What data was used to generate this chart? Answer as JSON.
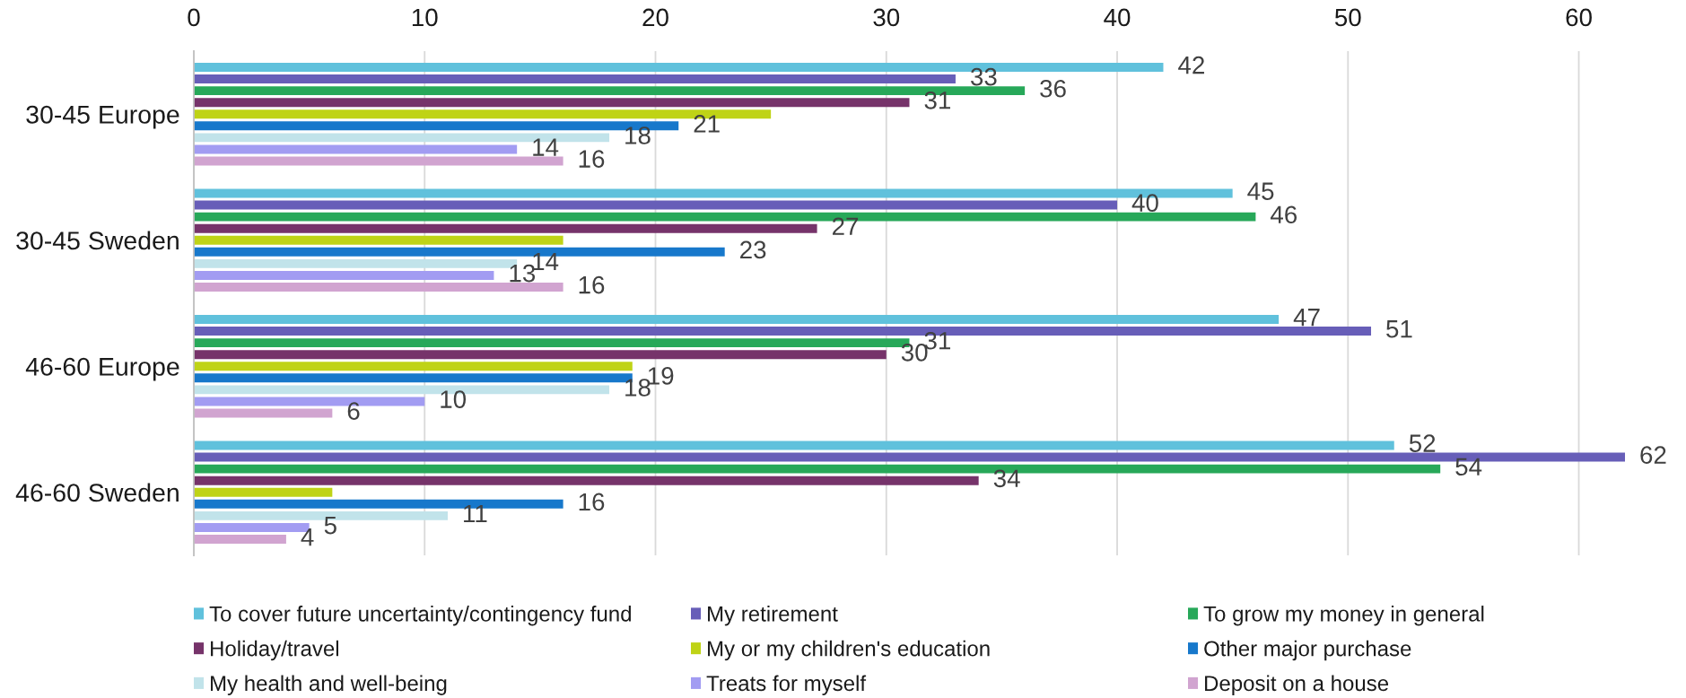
{
  "chart_data": {
    "type": "bar",
    "orientation": "horizontal",
    "categories": [
      "30-45 Europe",
      "30-45 Sweden",
      "46-60 Europe",
      "46-60 Sweden"
    ],
    "series": [
      {
        "name": "To cover future uncertainty/contingency fund",
        "color": "#60c1dc",
        "values": [
          42,
          45,
          47,
          52
        ],
        "value_labels": [
          "42",
          "45",
          "47",
          "52"
        ]
      },
      {
        "name": "My retirement",
        "color": "#675eb8",
        "values": [
          33,
          40,
          51,
          62
        ],
        "value_labels": [
          "33",
          "40",
          "51",
          "62"
        ]
      },
      {
        "name": "To grow my money in general",
        "color": "#27a859",
        "values": [
          36,
          46,
          31,
          54
        ],
        "value_labels": [
          "36",
          "46",
          "31",
          "54"
        ]
      },
      {
        "name": "Holiday/travel",
        "color": "#76336a",
        "values": [
          31,
          27,
          30,
          34
        ],
        "value_labels": [
          "31",
          "27",
          "30",
          "34"
        ]
      },
      {
        "name": "My or my children's education",
        "color": "#bfd316",
        "values": [
          25,
          16,
          19,
          6
        ],
        "value_labels": [
          null,
          null,
          null,
          null
        ]
      },
      {
        "name": "Other major purchase",
        "color": "#1778cb",
        "values": [
          21,
          23,
          19,
          16
        ],
        "value_labels": [
          "21",
          "23",
          "19",
          "16"
        ]
      },
      {
        "name": "My health and well-being",
        "color": "#c1e3ea",
        "values": [
          18,
          14,
          18,
          11
        ],
        "value_labels": [
          "18",
          "14",
          "18",
          "11"
        ]
      },
      {
        "name": "Treats for myself",
        "color": "#a29cf2",
        "values": [
          14,
          13,
          10,
          5
        ],
        "value_labels": [
          "14",
          "13",
          "10",
          "5"
        ]
      },
      {
        "name": "Deposit on a house",
        "color": "#d1a4d0",
        "values": [
          16,
          16,
          6,
          4
        ],
        "value_labels": [
          "16",
          "16",
          "6",
          "4"
        ]
      }
    ],
    "xlim": [
      0,
      62
    ],
    "xticks": [
      0,
      10,
      20,
      30,
      40,
      50,
      60
    ],
    "grid": "x",
    "legend": "bottom"
  }
}
